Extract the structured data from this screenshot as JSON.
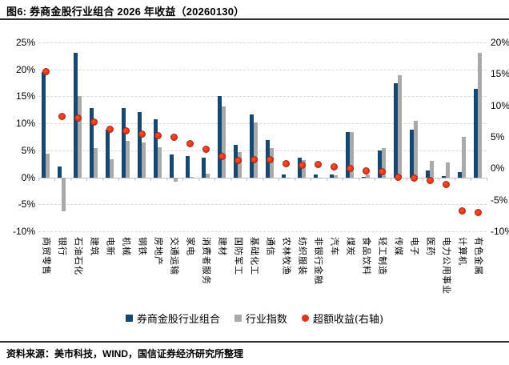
{
  "figure": {
    "title": "图6: 券商金股行业组合 2026 年收益（20260130）",
    "source_note": "资料来源：美市科技，WIND，国信证券经济研究所整理"
  },
  "chart_data": {
    "type": "bar",
    "title": "图6: 券商金股行业组合 2026 年收益（20260130）",
    "categories": [
      "商贸零售",
      "银行",
      "石油石化",
      "建筑",
      "电新",
      "机械",
      "钢铁",
      "房地产",
      "交通运输",
      "家电",
      "消费者服务",
      "建材",
      "国防军工",
      "基础化工",
      "通信",
      "农林牧渔",
      "纺织服装",
      "非银行金融",
      "汽车",
      "煤炭",
      "食品饮料",
      "轻工制造",
      "传媒",
      "电子",
      "医药",
      "电力公用事业",
      "计算机",
      "有色金属"
    ],
    "series": [
      {
        "name": "券商金股行业组合",
        "type": "bar",
        "axis": "left",
        "color": "#17466F",
        "values": [
          19.5,
          2.0,
          23.0,
          12.8,
          8.9,
          12.8,
          12.1,
          10.7,
          4.2,
          4.0,
          3.7,
          15.1,
          6.0,
          11.6,
          6.9,
          0.6,
          3.7,
          0.5,
          0.6,
          8.4,
          0.1,
          5.0,
          17.5,
          8.9,
          1.2,
          0.3,
          1.0,
          16.4
        ]
      },
      {
        "name": "行业指数",
        "type": "bar",
        "axis": "left",
        "color": "#A9A9A9",
        "values": [
          4.4,
          -6.3,
          15.0,
          5.4,
          3.3,
          6.8,
          6.4,
          5.5,
          -0.8,
          0.1,
          0.7,
          13.2,
          4.7,
          10.1,
          5.4,
          -0.2,
          3.2,
          -0.2,
          0.4,
          8.4,
          0.5,
          5.4,
          18.9,
          10.5,
          3.0,
          2.8,
          7.5,
          23.1
        ]
      },
      {
        "name": "超额收益(右轴)",
        "type": "scatter",
        "axis": "right",
        "color": "#DF3318",
        "values": [
          15.4,
          8.2,
          8.0,
          7.3,
          6.2,
          5.9,
          5.5,
          5.2,
          4.9,
          3.9,
          3.0,
          1.9,
          1.3,
          1.4,
          1.4,
          0.8,
          0.5,
          0.6,
          0.2,
          0.0,
          -0.4,
          -0.5,
          -1.4,
          -1.6,
          -1.9,
          -2.6,
          -6.8,
          -7.0
        ]
      }
    ],
    "left_axis": {
      "min": -10,
      "max": 25,
      "step": 5,
      "tick_labels": [
        "25%",
        "20%",
        "15%",
        "10%",
        "5%",
        "0%",
        "-5%",
        "-10%"
      ]
    },
    "right_axis": {
      "min": -10,
      "max": 20,
      "step": 5,
      "tick_labels": [
        "20%",
        "15%",
        "10%",
        "5%",
        "0%",
        "-5%",
        "-10%"
      ]
    },
    "grid": "horizontal-dashed",
    "legend_position": "bottom-center"
  }
}
